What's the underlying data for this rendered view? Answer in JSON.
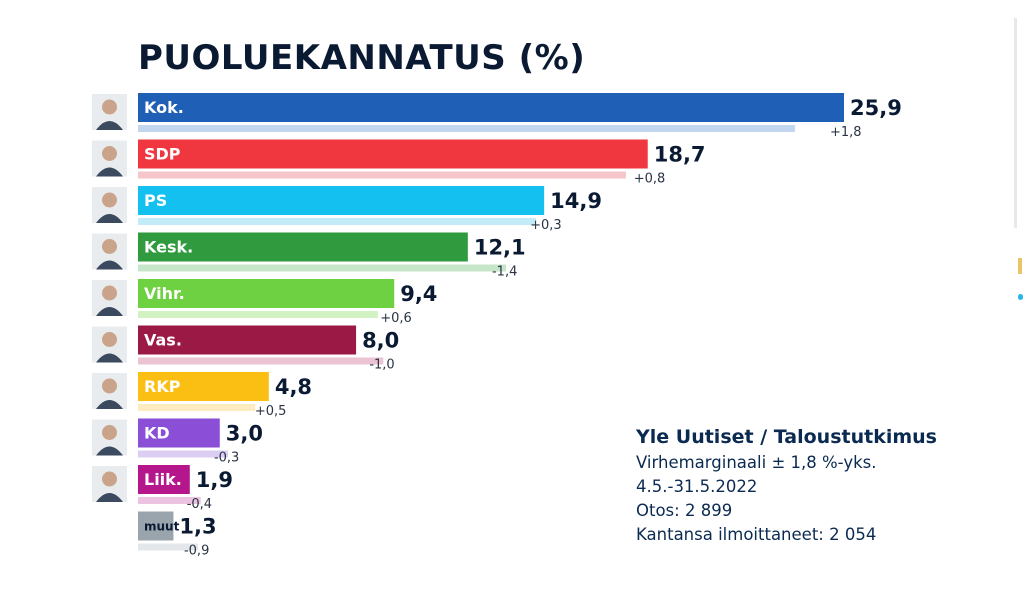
{
  "title": "PUOLUEKANNATUS (%)",
  "chart_data": {
    "type": "bar",
    "orientation": "horizontal",
    "title": "PUOLUEKANNATUS (%)",
    "categories": [
      "Kok.",
      "SDP",
      "PS",
      "Kesk.",
      "Vihr.",
      "Vas.",
      "RKP",
      "KD",
      "Liik.",
      "muut"
    ],
    "values": [
      25.9,
      18.7,
      14.9,
      12.1,
      9.4,
      8.0,
      4.8,
      3.0,
      1.9,
      1.3
    ],
    "value_labels": [
      "25,9",
      "18,7",
      "14,9",
      "12,1",
      "9,4",
      "8,0",
      "4,8",
      "3,0",
      "1,9",
      "1,3"
    ],
    "change_values": [
      1.8,
      0.8,
      0.3,
      -1.4,
      0.6,
      -1.0,
      0.5,
      -0.3,
      -0.4,
      -0.9
    ],
    "change_labels": [
      "+1,8",
      "+0,8",
      "+0,3",
      "-1,4",
      "+0,6",
      "-1,0",
      "+0,5",
      "-0,3",
      "-0,4",
      "-0,9"
    ],
    "colors": [
      "#1f5fb5",
      "#f0373f",
      "#13c0ef",
      "#2f9b3e",
      "#6ed142",
      "#9b1a45",
      "#fbbf13",
      "#8a4fd6",
      "#b5168b",
      "#9aa4ad"
    ],
    "change_colors": [
      "#c2d6ef",
      "#f6c6cb",
      "#c3ecf8",
      "#c5e6c8",
      "#d3f2c4",
      "#ebc3d2",
      "#fcecc0",
      "#dccdf3",
      "#ecc3e0",
      "#e3e7ea"
    ],
    "label_text_color": "#ffffff",
    "muut_label_text_color": "#0b1a33",
    "has_portrait": [
      true,
      true,
      true,
      true,
      true,
      true,
      true,
      true,
      true,
      false
    ],
    "xlim": [
      0,
      25.9
    ],
    "grid": false,
    "legend": "none"
  },
  "source": {
    "heading": "Yle Uutiset / Taloustutkimus",
    "lines": [
      "Virhemarginaali ± 1,8 %-yks.",
      "4.5.-31.5.2022",
      "Otos: 2 899",
      "Kantansa ilmoittaneet: 2 054"
    ]
  }
}
